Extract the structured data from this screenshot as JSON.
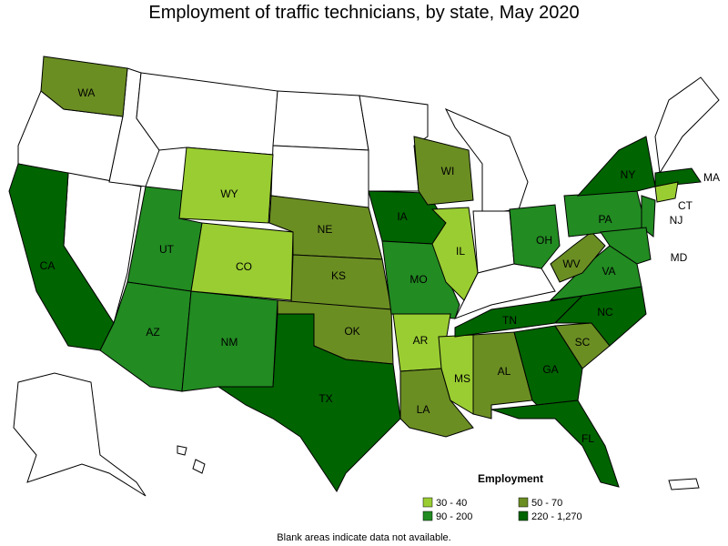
{
  "title": "Employment of traffic technicians, by state, May 2020",
  "legend": {
    "title": "Employment",
    "items": [
      {
        "label": "30 - 40",
        "color": "#9acd32"
      },
      {
        "label": "50 - 70",
        "color": "#6b8e23"
      },
      {
        "label": "90 - 200",
        "color": "#228b22"
      },
      {
        "label": "220 - 1,270",
        "color": "#006400"
      }
    ]
  },
  "states": [
    {
      "abbr": "WA",
      "range": "50 - 70"
    },
    {
      "abbr": "CA",
      "range": "220 - 1,270"
    },
    {
      "abbr": "UT",
      "range": "90 - 200"
    },
    {
      "abbr": "AZ",
      "range": "90 - 200"
    },
    {
      "abbr": "NM",
      "range": "90 - 200"
    },
    {
      "abbr": "WY",
      "range": "30 - 40"
    },
    {
      "abbr": "CO",
      "range": "30 - 40"
    },
    {
      "abbr": "NE",
      "range": "50 - 70"
    },
    {
      "abbr": "KS",
      "range": "50 - 70"
    },
    {
      "abbr": "OK",
      "range": "50 - 70"
    },
    {
      "abbr": "TX",
      "range": "220 - 1,270"
    },
    {
      "abbr": "IA",
      "range": "220 - 1,270"
    },
    {
      "abbr": "MO",
      "range": "90 - 200"
    },
    {
      "abbr": "AR",
      "range": "30 - 40"
    },
    {
      "abbr": "LA",
      "range": "50 - 70"
    },
    {
      "abbr": "WI",
      "range": "50 - 70"
    },
    {
      "abbr": "IL",
      "range": "30 - 40"
    },
    {
      "abbr": "MS",
      "range": "30 - 40"
    },
    {
      "abbr": "AL",
      "range": "50 - 70"
    },
    {
      "abbr": "TN",
      "range": "220 - 1,270"
    },
    {
      "abbr": "GA",
      "range": "220 - 1,270"
    },
    {
      "abbr": "FL",
      "range": "220 - 1,270"
    },
    {
      "abbr": "SC",
      "range": "50 - 70"
    },
    {
      "abbr": "NC",
      "range": "220 - 1,270"
    },
    {
      "abbr": "VA",
      "range": "90 - 200"
    },
    {
      "abbr": "WV",
      "range": "50 - 70"
    },
    {
      "abbr": "OH",
      "range": "90 - 200"
    },
    {
      "abbr": "PA",
      "range": "90 - 200"
    },
    {
      "abbr": "NY",
      "range": "220 - 1,270"
    },
    {
      "abbr": "MA",
      "range": "220 - 1,270"
    },
    {
      "abbr": "CT",
      "range": "30 - 40"
    },
    {
      "abbr": "NJ",
      "range": "90 - 200"
    },
    {
      "abbr": "MD",
      "range": "90 - 200"
    }
  ],
  "note": "Blank areas indicate data not available."
}
